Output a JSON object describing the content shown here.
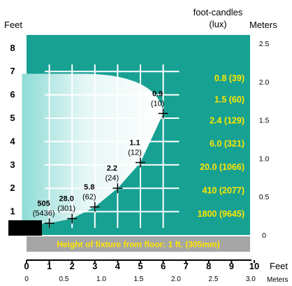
{
  "chart_data": {
    "type": "scatter",
    "title": "",
    "header": {
      "left_unit": "Feet",
      "right_label_line1": "foot-candles",
      "right_label_line2": "(lux)",
      "right_unit": "Meters"
    },
    "xlabel_feet": "Feet",
    "xlabel_meters": "Meters",
    "footer_caption": "Height of fixture from floor: 1 ft. (305mm)",
    "x_feet_ticks": [
      "0",
      "1",
      "2",
      "3",
      "4",
      "5",
      "6",
      "7",
      "8",
      "9",
      "10"
    ],
    "x_meter_ticks": [
      "0",
      "0.5",
      "1.0",
      "1.5",
      "2.0",
      "2.5",
      "3.0"
    ],
    "y_feet_ticks": [
      "1",
      "2",
      "3",
      "4",
      "5",
      "6",
      "7",
      "8"
    ],
    "y_meter_ticks": [
      "0",
      "0.5",
      "1.0",
      "1.5",
      "2.0",
      "2.5"
    ],
    "xlim_feet": [
      0,
      10
    ],
    "ylim_feet": [
      0,
      8.5
    ],
    "grid": true,
    "points": [
      {
        "x": 1,
        "y": 0.5,
        "fc": "505",
        "lux": "(5436)"
      },
      {
        "x": 2,
        "y": 0.7,
        "fc": "28.0",
        "lux": "(301)"
      },
      {
        "x": 3,
        "y": 1.2,
        "fc": "5.8",
        "lux": "(62)"
      },
      {
        "x": 4,
        "y": 2.0,
        "fc": "2.2",
        "lux": "(24)"
      },
      {
        "x": 5,
        "y": 3.1,
        "fc": "1.1",
        "lux": "(12)"
      },
      {
        "x": 6,
        "y": 5.2,
        "fc": "0.9",
        "lux": "(10)"
      }
    ],
    "isolux_levels": [
      {
        "label": "0.8 (39)",
        "y": 6.7
      },
      {
        "label": "1.5 (60)",
        "y": 5.8
      },
      {
        "label": "2.4 (129)",
        "y": 4.9
      },
      {
        "label": "6.0 (321)",
        "y": 3.9
      },
      {
        "label": "20.0 (1066)",
        "y": 2.9
      },
      {
        "label": "410  (2077)",
        "y": 1.9
      },
      {
        "label": "1800 (9645)",
        "y": 0.9
      }
    ]
  },
  "colors": {
    "background": "#17a193",
    "light_beam": "#e6f7f6",
    "grid": "#ffffff",
    "level_label": "#ffe600",
    "footer_bar": "#a6a6a6",
    "fixture": "#000000",
    "text": "#000000"
  }
}
